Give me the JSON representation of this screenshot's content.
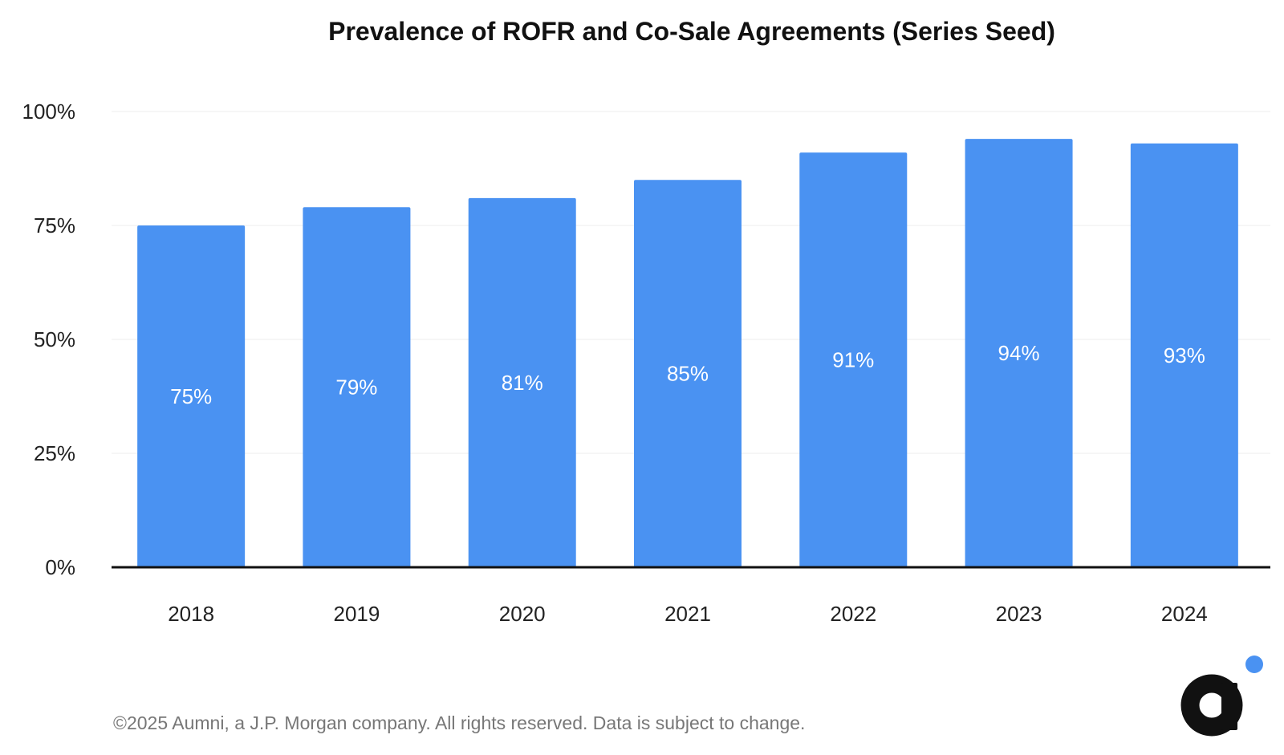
{
  "chart_data": {
    "type": "bar",
    "title": "Prevalence of ROFR and Co-Sale Agreements (Series Seed)",
    "xlabel": "",
    "ylabel": "",
    "categories": [
      "2018",
      "2019",
      "2020",
      "2021",
      "2022",
      "2023",
      "2024"
    ],
    "values": [
      75,
      79,
      81,
      85,
      91,
      94,
      93
    ],
    "data_labels": [
      "75%",
      "79%",
      "81%",
      "85%",
      "91%",
      "94%",
      "93%"
    ],
    "ylim": [
      0,
      100
    ],
    "y_ticks": [
      0,
      25,
      50,
      75,
      100
    ],
    "y_tick_labels": [
      "0%",
      "25%",
      "50%",
      "75%",
      "100%"
    ],
    "grid": true,
    "legend": "none",
    "bar_color": "#4A92F2"
  },
  "footer": {
    "copyright": "©2025 Aumni, a J.P. Morgan company. All rights reserved. Data is subject to change."
  },
  "logo": {
    "text": "a",
    "dot_color": "#4A92F2",
    "letter_color": "#111111",
    "icon": "aumni-logo-icon"
  }
}
